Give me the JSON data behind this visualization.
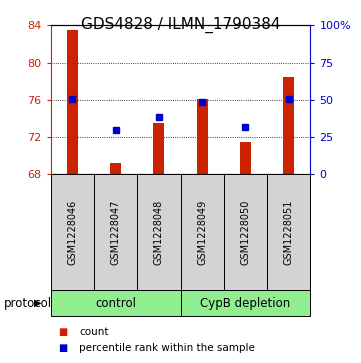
{
  "title": "GDS4828 / ILMN_1790384",
  "samples": [
    "GSM1228046",
    "GSM1228047",
    "GSM1228048",
    "GSM1228049",
    "GSM1228050",
    "GSM1228051"
  ],
  "bar_values": [
    83.5,
    69.2,
    73.5,
    76.1,
    71.5,
    78.5
  ],
  "bar_base": 68,
  "percentile_left_axis": [
    76.1,
    72.8,
    74.1,
    75.8,
    73.1,
    76.1
  ],
  "ylim": [
    68,
    84
  ],
  "yticks_left": [
    68,
    72,
    76,
    80,
    84
  ],
  "yticks_right": [
    0,
    25,
    50,
    75,
    100
  ],
  "bar_color": "#cc2200",
  "marker_color": "#0000cc",
  "marker_size": 5,
  "protocol_groups": [
    {
      "label": "control",
      "start": 0,
      "end": 3
    },
    {
      "label": "CypB depletion",
      "start": 3,
      "end": 6
    }
  ],
  "protocol_color": "#90ee90",
  "protocol_label": "protocol",
  "legend_count_label": "count",
  "legend_pct_label": "percentile rank within the sample",
  "bg_sample_box": "#d3d3d3",
  "title_fontsize": 11,
  "tick_fontsize": 8,
  "sample_fontsize": 7,
  "bar_width": 0.25
}
